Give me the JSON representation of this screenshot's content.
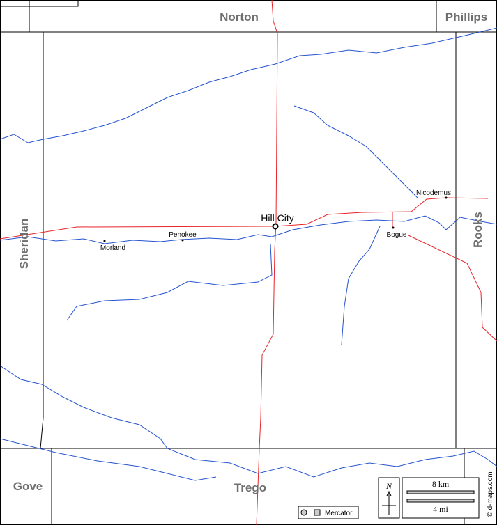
{
  "counties": [
    "Norton",
    "Phillips",
    "Sheridan",
    "Rooks",
    "Gove",
    "Trego"
  ],
  "towns": [
    {
      "label": "Hill City"
    },
    {
      "label": "Nicodemus"
    },
    {
      "label": "Penokee"
    },
    {
      "label": "Morland"
    },
    {
      "label": "Bogue"
    }
  ],
  "scale": {
    "km": "8 km",
    "mi": "4 mi"
  },
  "compass": "N",
  "projection": "Mercator",
  "credit": "© d-maps.com"
}
